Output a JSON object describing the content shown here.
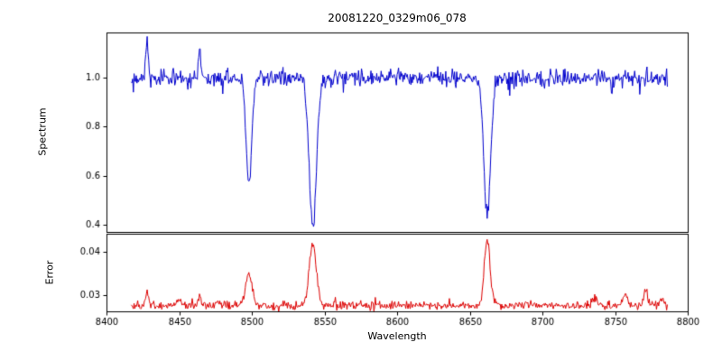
{
  "chart_data": {
    "type": "line",
    "title": "20081220_0329m06_078",
    "xlabel": "Wavelength",
    "grid": false,
    "legend": null,
    "x_range": [
      8400,
      8800
    ],
    "x_ticks": [
      8400,
      8450,
      8500,
      8550,
      8600,
      8650,
      8700,
      8750,
      8800
    ],
    "x_tick_labels": [
      "8400",
      "8450",
      "8500",
      "8550",
      "8600",
      "8650",
      "8700",
      "8750",
      "8800"
    ],
    "data_x_start": 8417,
    "data_x_end": 8786,
    "data_x_step": 0.5,
    "seed": 42,
    "panels": [
      {
        "name": "spectrum",
        "ylabel": "Spectrum",
        "color": "#0000cd",
        "ylim": [
          0.37,
          1.185
        ],
        "y_ticks": [
          0.4,
          0.6,
          0.8,
          1.0
        ],
        "y_tick_labels": [
          "0.4",
          "0.6",
          "0.8",
          "1.0"
        ],
        "continuum": 1.0,
        "noise_sigma": 0.018,
        "absorption_lines": [
          {
            "center": 8498,
            "depth": 0.43,
            "sigma": 2.0
          },
          {
            "center": 8542,
            "depth": 0.6,
            "sigma": 2.6
          },
          {
            "center": 8662,
            "depth": 0.56,
            "sigma": 2.3
          }
        ],
        "emission_spikes": [
          {
            "center": 8428,
            "height": 0.16,
            "sigma": 0.9
          },
          {
            "center": 8464,
            "height": 0.12,
            "sigma": 0.8
          }
        ]
      },
      {
        "name": "error",
        "ylabel": "Error",
        "color": "#dd0000",
        "ylim": [
          0.0262,
          0.0442
        ],
        "y_ticks": [
          0.03,
          0.04
        ],
        "y_tick_labels": [
          "0.03",
          "0.04"
        ],
        "baseline": 0.0275,
        "noise_sigma": 0.0005,
        "bumps": [
          {
            "center": 8428,
            "height": 0.0032,
            "sigma": 1.2
          },
          {
            "center": 8450,
            "height": 0.0015,
            "sigma": 1.5
          },
          {
            "center": 8464,
            "height": 0.0018,
            "sigma": 1.2
          },
          {
            "center": 8476,
            "height": 0.0012,
            "sigma": 1.5
          },
          {
            "center": 8498,
            "height": 0.0075,
            "sigma": 2.2
          },
          {
            "center": 8542,
            "height": 0.0142,
            "sigma": 2.4
          },
          {
            "center": 8662,
            "height": 0.0152,
            "sigma": 2.0
          },
          {
            "center": 8736,
            "height": 0.0015,
            "sigma": 1.6
          },
          {
            "center": 8757,
            "height": 0.0028,
            "sigma": 1.6
          },
          {
            "center": 8771,
            "height": 0.004,
            "sigma": 1.3
          },
          {
            "center": 8782,
            "height": 0.0018,
            "sigma": 1.2
          }
        ]
      }
    ]
  }
}
